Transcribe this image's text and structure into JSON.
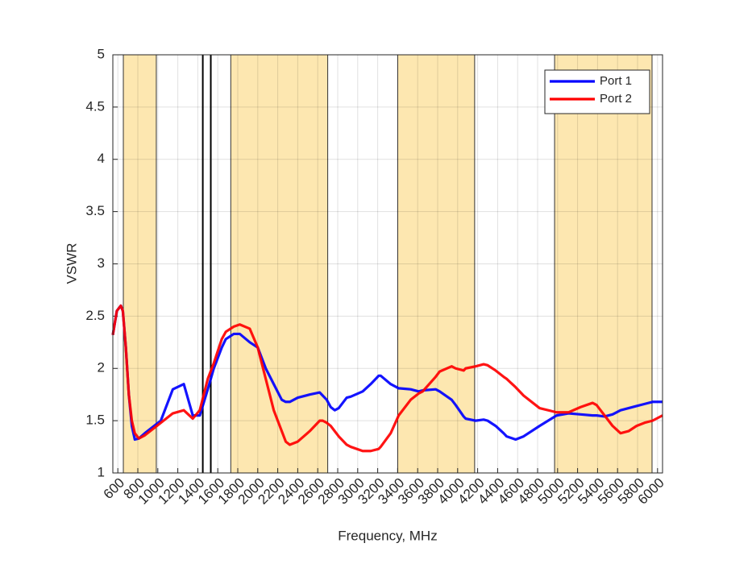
{
  "chart_data": {
    "type": "line",
    "xlabel": "Frequency, MHz",
    "ylabel": "VSWR",
    "x": [
      550,
      590,
      630,
      650,
      680,
      710,
      740,
      770,
      810,
      870,
      950,
      1030,
      1150,
      1260,
      1350,
      1420,
      1500,
      1560,
      1640,
      1680,
      1760,
      1820,
      1920,
      2000,
      2080,
      2160,
      2240,
      2280,
      2320,
      2400,
      2520,
      2620,
      2650,
      2690,
      2730,
      2770,
      2810,
      2890,
      2930,
      3050,
      3130,
      3210,
      3230,
      3330,
      3410,
      3530,
      3610,
      3650,
      3780,
      3820,
      3940,
      3980,
      4060,
      4080,
      4180,
      4260,
      4300,
      4380,
      4460,
      4490,
      4580,
      4660,
      4820,
      4990,
      5110,
      5230,
      5350,
      5390,
      5470,
      5550,
      5630,
      5710,
      5790,
      5870,
      5950,
      6050
    ],
    "series": [
      {
        "name": "Port 1",
        "color": "#0000ff",
        "values": [
          2.32,
          2.55,
          2.6,
          2.55,
          2.2,
          1.75,
          1.45,
          1.32,
          1.33,
          1.38,
          1.44,
          1.5,
          1.8,
          1.85,
          1.55,
          1.55,
          1.8,
          2.0,
          2.2,
          2.28,
          2.33,
          2.33,
          2.25,
          2.2,
          2.0,
          1.85,
          1.7,
          1.68,
          1.68,
          1.72,
          1.75,
          1.77,
          1.74,
          1.7,
          1.63,
          1.6,
          1.62,
          1.72,
          1.73,
          1.78,
          1.85,
          1.93,
          1.93,
          1.85,
          1.81,
          1.8,
          1.78,
          1.79,
          1.8,
          1.78,
          1.7,
          1.65,
          1.54,
          1.52,
          1.5,
          1.51,
          1.5,
          1.45,
          1.38,
          1.35,
          1.32,
          1.35,
          1.45,
          1.55,
          1.57,
          1.56,
          1.55,
          1.55,
          1.54,
          1.56,
          1.6,
          1.62,
          1.64,
          1.66,
          1.68,
          1.68
        ]
      },
      {
        "name": "Port 2",
        "color": "#ff0000",
        "values": [
          2.32,
          2.55,
          2.6,
          2.55,
          2.2,
          1.75,
          1.5,
          1.38,
          1.33,
          1.36,
          1.42,
          1.48,
          1.57,
          1.6,
          1.52,
          1.6,
          1.9,
          2.05,
          2.28,
          2.35,
          2.4,
          2.42,
          2.38,
          2.2,
          1.9,
          1.6,
          1.4,
          1.3,
          1.27,
          1.3,
          1.4,
          1.5,
          1.5,
          1.48,
          1.45,
          1.4,
          1.35,
          1.27,
          1.25,
          1.21,
          1.21,
          1.23,
          1.25,
          1.38,
          1.55,
          1.7,
          1.76,
          1.78,
          1.92,
          1.97,
          2.02,
          2.0,
          1.98,
          2.0,
          2.02,
          2.04,
          2.03,
          1.98,
          1.92,
          1.9,
          1.82,
          1.74,
          1.62,
          1.58,
          1.58,
          1.63,
          1.67,
          1.65,
          1.55,
          1.45,
          1.38,
          1.4,
          1.45,
          1.48,
          1.5,
          1.55
        ]
      }
    ],
    "bands": [
      [
        655,
        985
      ],
      [
        1730,
        2700
      ],
      [
        3400,
        4170
      ],
      [
        4970,
        5945
      ]
    ],
    "band_color": "#fde7b0",
    "vlines": [
      1450,
      1530
    ],
    "xlim": [
      550,
      6050
    ],
    "ylim": [
      1,
      5
    ],
    "xticks": [
      600,
      800,
      1000,
      1200,
      1400,
      1600,
      1800,
      2000,
      2200,
      2400,
      2600,
      2800,
      3000,
      3200,
      3400,
      3600,
      3800,
      4000,
      4200,
      4400,
      4600,
      4800,
      5000,
      5200,
      5400,
      5600,
      5800,
      6000
    ],
    "yticks": [
      1,
      1.5,
      2,
      2.5,
      3,
      3.5,
      4,
      4.5,
      5
    ],
    "grid": true,
    "legend": "upper right"
  }
}
